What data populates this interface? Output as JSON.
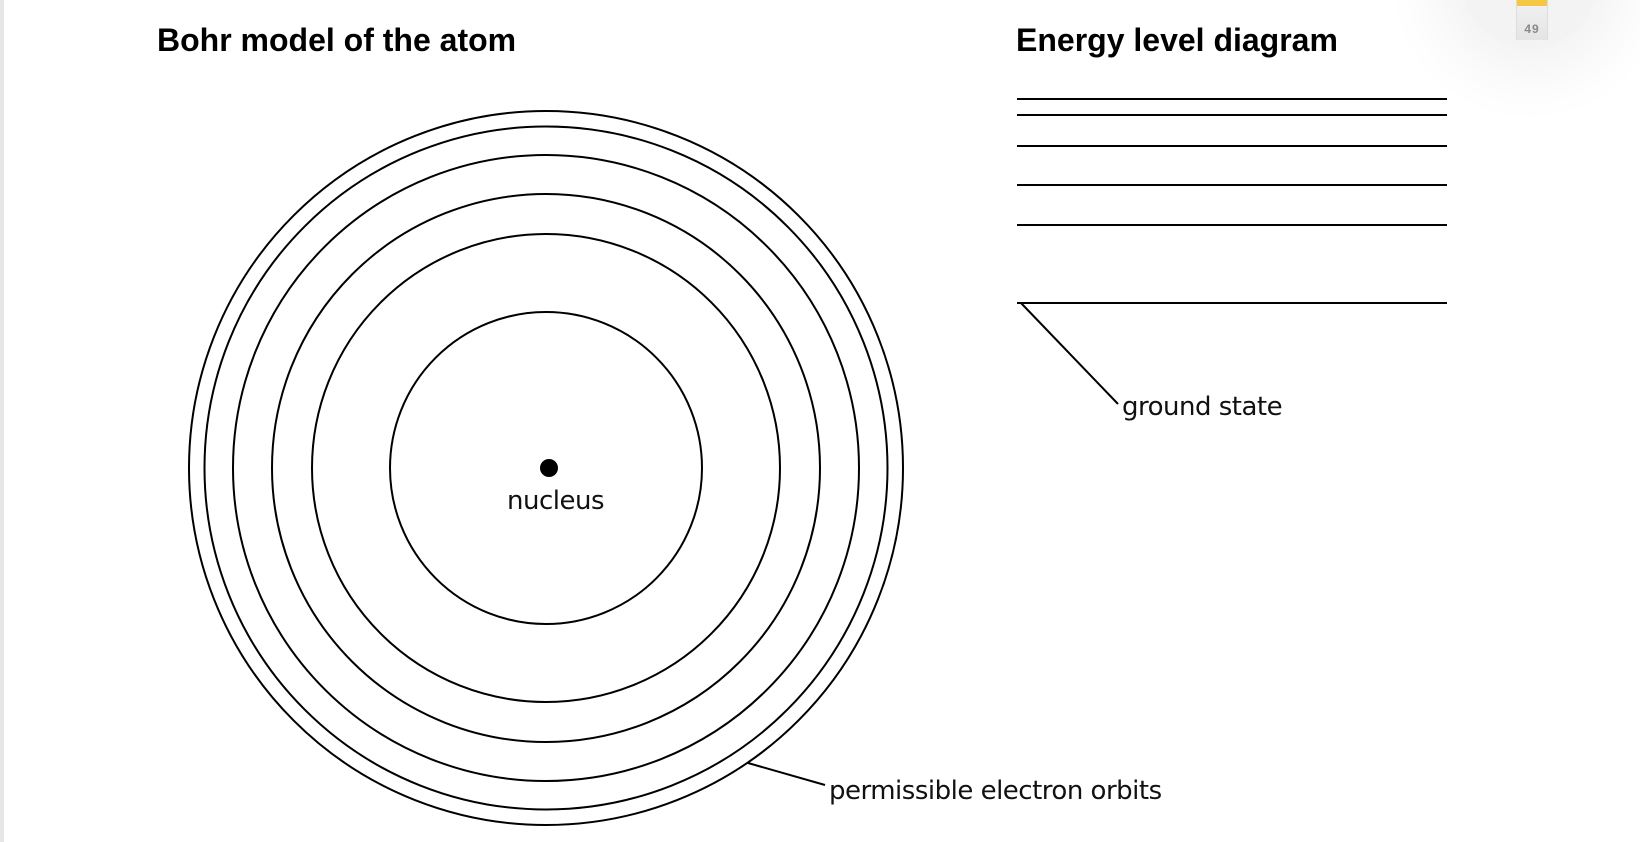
{
  "bohr": {
    "title": "Bohr model of the atom",
    "nucleus_label": "nucleus",
    "orbits_label": "permissible electron orbits",
    "orbit_count": 6
  },
  "energy": {
    "title": "Energy level diagram",
    "ground_label": "ground state",
    "level_count": 6
  },
  "widget": {
    "value": "49",
    "accent": "#f5c842"
  }
}
